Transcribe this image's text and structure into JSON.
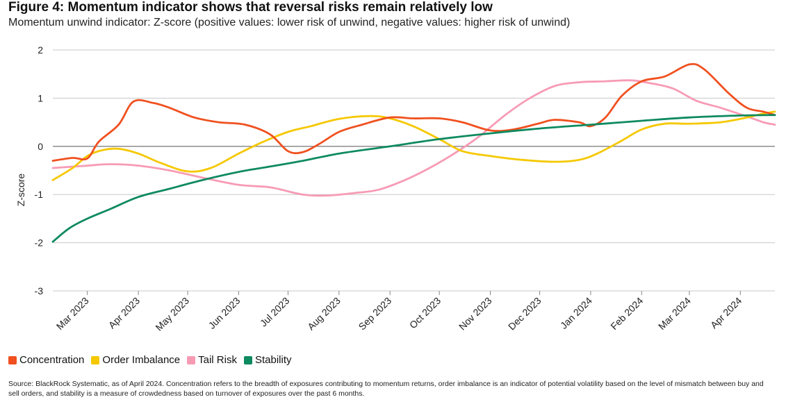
{
  "title": "Figure 4: Momentum indicator shows that reversal risks remain relatively low",
  "subtitle": "Momentum unwind indicator: Z-score (positive values: lower risk of unwind, negative values: higher risk of unwind)",
  "source": "Source: BlackRock Systematic, as of April 2024. Concentration refers to the breadth of exposures contributing to momentum returns, order imbalance is an indicator of potential volatility based on the level of mismatch between buy and sell orders, and stability is a measure of crowdedness based on turnover of exposures over the past 6 months.",
  "chart_data": {
    "type": "line",
    "title": "Figure 4: Momentum indicator shows that reversal risks remain relatively low",
    "ylabel": "Z-score",
    "xlabel": "",
    "ylim": [
      -3,
      2
    ],
    "yticks": [
      2,
      1,
      0,
      -1,
      -2,
      -3
    ],
    "xlim": [
      "2023-02-08",
      "2024-04-22"
    ],
    "x_tick_labels": [
      "Mar 2023",
      "Apr 2023",
      "May 2023",
      "Jun 2023",
      "Jul 2023",
      "Aug 2023",
      "Sep 2023",
      "Oct 2023",
      "Nov 2023",
      "Dec 2023",
      "Jan 2024",
      "Feb 2024",
      "Mar 2024",
      "Apr 2024"
    ],
    "x_tick_dates": [
      "2023-03-01",
      "2023-04-01",
      "2023-05-01",
      "2023-06-01",
      "2023-07-01",
      "2023-08-01",
      "2023-09-01",
      "2023-10-01",
      "2023-11-01",
      "2023-12-01",
      "2024-01-01",
      "2024-02-01",
      "2024-03-01",
      "2024-04-01"
    ],
    "grid": "horizontal",
    "legend_position": "bottom-left",
    "series": [
      {
        "name": "Concentration",
        "color": "#f0501f",
        "points": [
          [
            "2023-02-08",
            -0.3
          ],
          [
            "2023-02-20",
            -0.24
          ],
          [
            "2023-03-01",
            -0.25
          ],
          [
            "2023-03-08",
            0.1
          ],
          [
            "2023-03-20",
            0.45
          ],
          [
            "2023-03-29",
            0.93
          ],
          [
            "2023-04-10",
            0.9
          ],
          [
            "2023-04-20",
            0.8
          ],
          [
            "2023-05-05",
            0.6
          ],
          [
            "2023-05-20",
            0.5
          ],
          [
            "2023-06-05",
            0.45
          ],
          [
            "2023-06-20",
            0.25
          ],
          [
            "2023-07-01",
            -0.1
          ],
          [
            "2023-07-10",
            -0.12
          ],
          [
            "2023-07-20",
            0.05
          ],
          [
            "2023-08-01",
            0.3
          ],
          [
            "2023-08-15",
            0.45
          ],
          [
            "2023-09-01",
            0.6
          ],
          [
            "2023-09-15",
            0.58
          ],
          [
            "2023-10-01",
            0.58
          ],
          [
            "2023-10-15",
            0.5
          ],
          [
            "2023-11-01",
            0.33
          ],
          [
            "2023-11-15",
            0.35
          ],
          [
            "2023-12-01",
            0.48
          ],
          [
            "2023-12-10",
            0.55
          ],
          [
            "2023-12-25",
            0.5
          ],
          [
            "2024-01-01",
            0.42
          ],
          [
            "2024-01-10",
            0.6
          ],
          [
            "2024-01-20",
            1.05
          ],
          [
            "2024-02-01",
            1.35
          ],
          [
            "2024-02-15",
            1.45
          ],
          [
            "2024-03-01",
            1.7
          ],
          [
            "2024-03-10",
            1.6
          ],
          [
            "2024-03-25",
            1.1
          ],
          [
            "2024-04-05",
            0.8
          ],
          [
            "2024-04-15",
            0.72
          ],
          [
            "2024-04-22",
            0.65
          ]
        ]
      },
      {
        "name": "Order Imbalance",
        "color": "#f5c800",
        "points": [
          [
            "2023-02-08",
            -0.7
          ],
          [
            "2023-02-20",
            -0.45
          ],
          [
            "2023-03-01",
            -0.2
          ],
          [
            "2023-03-10",
            -0.08
          ],
          [
            "2023-03-20",
            -0.05
          ],
          [
            "2023-04-01",
            -0.15
          ],
          [
            "2023-04-15",
            -0.35
          ],
          [
            "2023-05-01",
            -0.52
          ],
          [
            "2023-05-15",
            -0.45
          ],
          [
            "2023-06-01",
            -0.15
          ],
          [
            "2023-06-15",
            0.08
          ],
          [
            "2023-07-01",
            0.3
          ],
          [
            "2023-07-15",
            0.42
          ],
          [
            "2023-08-01",
            0.57
          ],
          [
            "2023-08-20",
            0.63
          ],
          [
            "2023-09-01",
            0.58
          ],
          [
            "2023-09-15",
            0.42
          ],
          [
            "2023-10-01",
            0.15
          ],
          [
            "2023-10-15",
            -0.1
          ],
          [
            "2023-11-01",
            -0.2
          ],
          [
            "2023-11-20",
            -0.28
          ],
          [
            "2023-12-10",
            -0.32
          ],
          [
            "2023-12-25",
            -0.28
          ],
          [
            "2024-01-05",
            -0.15
          ],
          [
            "2024-01-20",
            0.12
          ],
          [
            "2024-02-01",
            0.35
          ],
          [
            "2024-02-15",
            0.47
          ],
          [
            "2024-03-01",
            0.47
          ],
          [
            "2024-03-20",
            0.5
          ],
          [
            "2024-04-05",
            0.6
          ],
          [
            "2024-04-15",
            0.68
          ],
          [
            "2024-04-22",
            0.72
          ]
        ]
      },
      {
        "name": "Tail Risk",
        "color": "#f79bb5",
        "points": [
          [
            "2023-02-08",
            -0.45
          ],
          [
            "2023-03-01",
            -0.4
          ],
          [
            "2023-03-15",
            -0.37
          ],
          [
            "2023-04-01",
            -0.4
          ],
          [
            "2023-04-20",
            -0.5
          ],
          [
            "2023-05-10",
            -0.65
          ],
          [
            "2023-06-01",
            -0.8
          ],
          [
            "2023-06-20",
            -0.85
          ],
          [
            "2023-07-10",
            -1.0
          ],
          [
            "2023-07-25",
            -1.02
          ],
          [
            "2023-08-10",
            -0.97
          ],
          [
            "2023-08-25",
            -0.9
          ],
          [
            "2023-09-10",
            -0.7
          ],
          [
            "2023-09-25",
            -0.45
          ],
          [
            "2023-10-10",
            -0.15
          ],
          [
            "2023-10-25",
            0.2
          ],
          [
            "2023-11-10",
            0.65
          ],
          [
            "2023-11-25",
            1.0
          ],
          [
            "2023-12-10",
            1.25
          ],
          [
            "2023-12-25",
            1.33
          ],
          [
            "2024-01-10",
            1.35
          ],
          [
            "2024-01-25",
            1.37
          ],
          [
            "2024-02-05",
            1.32
          ],
          [
            "2024-02-20",
            1.2
          ],
          [
            "2024-03-05",
            0.95
          ],
          [
            "2024-03-20",
            0.8
          ],
          [
            "2024-04-05",
            0.62
          ],
          [
            "2024-04-15",
            0.5
          ],
          [
            "2024-04-22",
            0.45
          ]
        ]
      },
      {
        "name": "Stability",
        "color": "#0e8a5f",
        "points": [
          [
            "2023-02-08",
            -1.98
          ],
          [
            "2023-02-18",
            -1.7
          ],
          [
            "2023-03-01",
            -1.5
          ],
          [
            "2023-03-15",
            -1.3
          ],
          [
            "2023-04-01",
            -1.05
          ],
          [
            "2023-04-20",
            -0.88
          ],
          [
            "2023-05-10",
            -0.7
          ],
          [
            "2023-06-01",
            -0.53
          ],
          [
            "2023-06-20",
            -0.42
          ],
          [
            "2023-07-10",
            -0.3
          ],
          [
            "2023-08-01",
            -0.15
          ],
          [
            "2023-09-01",
            0.0
          ],
          [
            "2023-10-01",
            0.15
          ],
          [
            "2023-11-01",
            0.27
          ],
          [
            "2023-12-01",
            0.37
          ],
          [
            "2024-01-01",
            0.45
          ],
          [
            "2024-02-01",
            0.53
          ],
          [
            "2024-03-01",
            0.6
          ],
          [
            "2024-04-01",
            0.64
          ],
          [
            "2024-04-22",
            0.65
          ]
        ]
      }
    ]
  }
}
